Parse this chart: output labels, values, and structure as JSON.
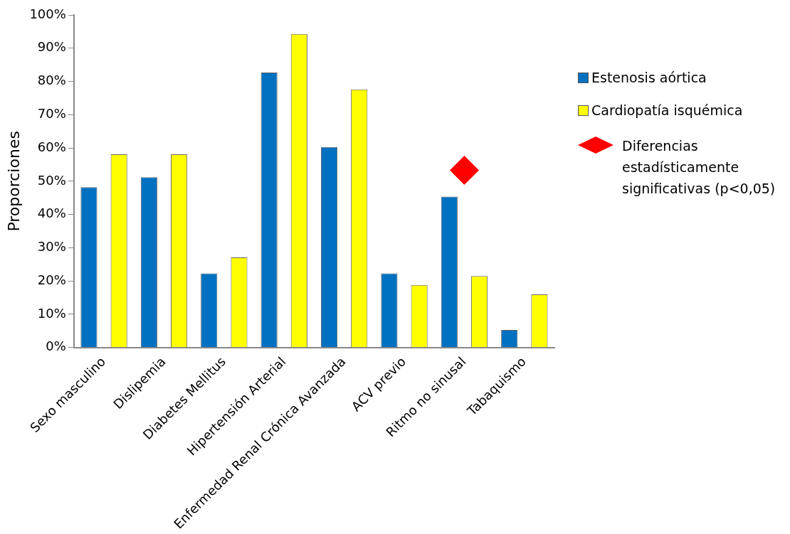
{
  "chart_data": {
    "type": "bar",
    "ylabel": "Proporciones",
    "categories": [
      "Sexo masculino",
      "Dislipemia",
      "Diabetes Mellitus",
      "Hipertensión Arterial",
      "Enfermedad Renal Crónica Avanzada",
      "ACV previo",
      "Ritmo no sinusal",
      "Tabaquismo"
    ],
    "series": [
      {
        "name": "Estenosis aórtica",
        "color": "#0070c0",
        "values": [
          48.2,
          51.2,
          22.3,
          82.7,
          60.3,
          22.3,
          45.4,
          5.3
        ]
      },
      {
        "name": "Cardiopatía isquémica",
        "color": "#ffff00",
        "values": [
          58.1,
          58.1,
          27.1,
          94.3,
          77.6,
          18.8,
          21.5,
          16.0
        ]
      },
      {
        "name": "Diferencias estadísticamente significativas (p<0,05)",
        "type": "scatter",
        "color": "#ff0000",
        "x": [
          "Ritmo no sinusal"
        ],
        "values": [
          53.3
        ],
        "marker": "diamond"
      }
    ],
    "ylim": [
      0,
      100
    ],
    "yticks": [
      {
        "value": 0,
        "label": "0%"
      },
      {
        "value": 10,
        "label": "10%"
      },
      {
        "value": 20,
        "label": "20%"
      },
      {
        "value": 30,
        "label": "30%"
      },
      {
        "value": 40,
        "label": "40%"
      },
      {
        "value": 50,
        "label": "50%"
      },
      {
        "value": 60,
        "label": "60%"
      },
      {
        "value": 70,
        "label": "70%"
      },
      {
        "value": 80,
        "label": "80%"
      },
      {
        "value": 90,
        "label": "90%"
      },
      {
        "value": 100,
        "label": "100%"
      }
    ],
    "grid": false,
    "legend": "right"
  }
}
